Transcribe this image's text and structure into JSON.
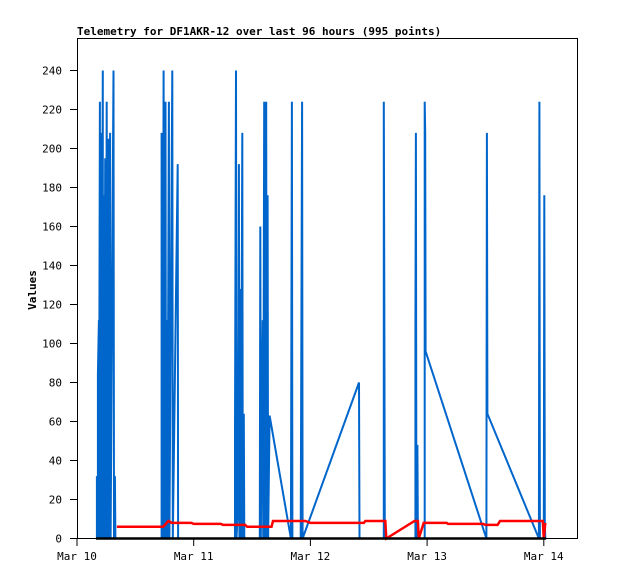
{
  "chart_data": {
    "type": "line",
    "title": "Telemetry for DF1AKR-12 over last 96 hours (995 points)",
    "xlabel": "",
    "ylabel": "Values",
    "x_unit": "hours since Mar 10 00:00",
    "xlim": [
      0,
      96
    ],
    "ylim": [
      0,
      255
    ],
    "x_ticks": [
      {
        "h": 0,
        "label": "Mar 10"
      },
      {
        "h": 24,
        "label": "Mar 11"
      },
      {
        "h": 48,
        "label": "Mar 12"
      },
      {
        "h": 72,
        "label": "Mar 13"
      },
      {
        "h": 96,
        "label": "Mar 14"
      }
    ],
    "y_ticks": [
      0,
      20,
      40,
      60,
      80,
      100,
      120,
      140,
      160,
      180,
      200,
      220,
      240
    ],
    "grid": false,
    "series": [
      {
        "name": "series-blue",
        "color": "#0066cc",
        "points": [
          [
            4.1,
            0
          ],
          [
            4.1,
            32
          ],
          [
            4.3,
            0
          ],
          [
            4.3,
            84
          ],
          [
            4.5,
            112
          ],
          [
            4.5,
            0
          ],
          [
            4.7,
            224
          ],
          [
            4.7,
            0
          ],
          [
            4.9,
            208
          ],
          [
            5.0,
            0
          ],
          [
            5.3,
            240
          ],
          [
            5.3,
            0
          ],
          [
            5.5,
            176
          ],
          [
            5.6,
            0
          ],
          [
            5.8,
            195
          ],
          [
            5.9,
            0
          ],
          [
            6.1,
            224
          ],
          [
            6.2,
            0
          ],
          [
            6.4,
            205
          ],
          [
            6.5,
            200
          ],
          [
            6.6,
            0
          ],
          [
            6.8,
            208
          ],
          [
            6.9,
            0
          ],
          [
            7.5,
            240
          ],
          [
            7.6,
            0
          ],
          [
            7.8,
            32
          ],
          [
            7.9,
            0
          ],
          [
            17.4,
            0
          ],
          [
            17.4,
            208
          ],
          [
            17.6,
            0
          ],
          [
            17.8,
            240
          ],
          [
            17.9,
            0
          ],
          [
            18.2,
            224
          ],
          [
            18.3,
            0
          ],
          [
            18.5,
            112
          ],
          [
            18.6,
            0
          ],
          [
            18.9,
            224
          ],
          [
            19.0,
            0
          ],
          [
            19.6,
            240
          ],
          [
            19.7,
            0
          ],
          [
            20.7,
            192
          ],
          [
            20.8,
            0
          ],
          [
            32.5,
            0
          ],
          [
            32.5,
            56
          ],
          [
            32.7,
            240
          ],
          [
            32.8,
            0
          ],
          [
            33.1,
            16
          ],
          [
            33.3,
            192
          ],
          [
            33.4,
            0
          ],
          [
            33.6,
            128
          ],
          [
            33.7,
            0
          ],
          [
            34.0,
            208
          ],
          [
            34.1,
            0
          ],
          [
            34.3,
            64
          ],
          [
            34.4,
            0
          ],
          [
            37.6,
            0
          ],
          [
            37.7,
            160
          ],
          [
            37.8,
            0
          ],
          [
            38.2,
            112
          ],
          [
            38.3,
            0
          ],
          [
            38.5,
            224
          ],
          [
            38.6,
            0
          ],
          [
            38.9,
            224
          ],
          [
            39.0,
            0
          ],
          [
            39.2,
            176
          ],
          [
            39.3,
            0
          ],
          [
            39.6,
            63
          ],
          [
            44.0,
            0
          ],
          [
            44.2,
            224
          ],
          [
            44.3,
            0
          ],
          [
            46.0,
            0
          ],
          [
            46.3,
            224
          ],
          [
            46.4,
            0
          ],
          [
            58.0,
            80
          ],
          [
            58.1,
            0
          ],
          [
            63.1,
            0
          ],
          [
            63.1,
            224
          ],
          [
            63.2,
            128
          ],
          [
            63.3,
            0
          ],
          [
            69.6,
            0
          ],
          [
            69.6,
            104
          ],
          [
            69.7,
            208
          ],
          [
            69.8,
            0
          ],
          [
            70.0,
            48
          ],
          [
            70.1,
            0
          ],
          [
            71.5,
            0
          ],
          [
            71.5,
            224
          ],
          [
            71.6,
            208
          ],
          [
            71.7,
            96
          ],
          [
            84.2,
            0
          ],
          [
            84.3,
            208
          ],
          [
            84.4,
            64
          ],
          [
            95.0,
            0
          ],
          [
            95.1,
            224
          ],
          [
            95.2,
            0
          ],
          [
            96.0,
            0
          ],
          [
            96.1,
            176
          ],
          [
            96.2,
            8
          ],
          [
            96.3,
            0
          ]
        ]
      },
      {
        "name": "series-red",
        "color": "#ff0000",
        "points": [
          [
            8.2,
            6
          ],
          [
            17.7,
            6
          ],
          [
            18.8,
            9
          ],
          [
            19.5,
            8
          ],
          [
            23.5,
            8
          ],
          [
            24.0,
            7.5
          ],
          [
            29.6,
            7.5
          ],
          [
            30.0,
            7
          ],
          [
            34.6,
            7
          ],
          [
            35.0,
            6
          ],
          [
            40.0,
            6
          ],
          [
            40.3,
            9
          ],
          [
            47.0,
            9
          ],
          [
            48.0,
            8
          ],
          [
            59.0,
            8
          ],
          [
            59.3,
            9
          ],
          [
            63.4,
            9
          ],
          [
            63.6,
            0
          ],
          [
            69.4,
            9
          ],
          [
            70.1,
            9
          ],
          [
            70.3,
            0
          ],
          [
            71.3,
            8
          ],
          [
            76.0,
            8
          ],
          [
            76.3,
            7.5
          ],
          [
            83.5,
            7.5
          ],
          [
            84.0,
            7
          ],
          [
            86.5,
            7
          ],
          [
            87.0,
            9
          ],
          [
            95.8,
            9
          ],
          [
            96.0,
            0
          ],
          [
            96.3,
            8
          ]
        ]
      },
      {
        "name": "series-black",
        "color": "#000000",
        "points": [
          [
            3.9,
            0
          ],
          [
            96.5,
            0
          ]
        ]
      }
    ]
  }
}
